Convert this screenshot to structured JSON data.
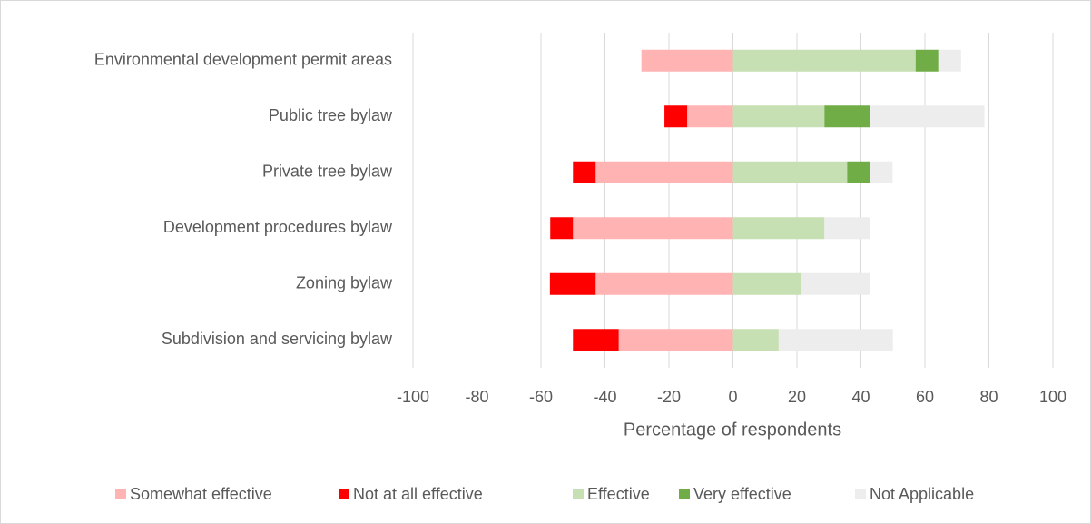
{
  "chart_data": {
    "type": "diverging_bar",
    "x_label": "Percentage of respondents",
    "categories": [
      "Environmental development permit areas",
      "Public tree bylaw",
      "Private tree bylaw",
      "Development procedures bylaw",
      "Zoning bylaw",
      "Subdivision and servicing bylaw"
    ],
    "series": [
      {
        "name": "Somewhat effective",
        "color": "#ffb3b3",
        "values": [
          -28.6,
          -14.3,
          -42.9,
          -50,
          -42.9,
          -35.7
        ]
      },
      {
        "name": "Not at all effective",
        "color": "#ff0000",
        "values": [
          0,
          -7.1,
          -7.1,
          -7.1,
          -14.3,
          -14.3
        ]
      },
      {
        "name": "Effective",
        "color": "#c6e0b4",
        "values": [
          57.1,
          28.6,
          35.7,
          28.6,
          21.4,
          14.3
        ]
      },
      {
        "name": "Very effective",
        "color": "#70ad47",
        "values": [
          7.1,
          14.3,
          7.1,
          0,
          0,
          0
        ]
      },
      {
        "name": "Not Applicable",
        "color": "#ededed",
        "values": [
          7.1,
          35.7,
          7.1,
          14.3,
          21.4,
          35.7
        ]
      }
    ],
    "xlim": [
      -100,
      100
    ],
    "xticks": [
      -100,
      -80,
      -60,
      -40,
      -20,
      0,
      20,
      40,
      60,
      80,
      100
    ],
    "grid": true,
    "legend": "bottom"
  }
}
